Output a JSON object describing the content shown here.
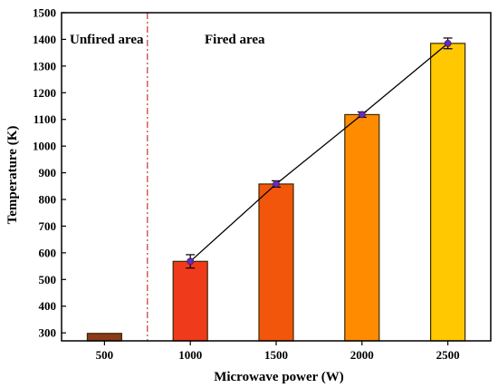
{
  "chart_data": {
    "type": "bar",
    "xlabel": "Microwave power (W)",
    "ylabel": "Temperature (K)",
    "ylim": [
      270,
      1500
    ],
    "yticks": [
      300,
      400,
      500,
      600,
      700,
      800,
      900,
      1000,
      1100,
      1200,
      1300,
      1400,
      1500
    ],
    "categories": [
      "500",
      "1000",
      "1500",
      "2000",
      "2500"
    ],
    "values": [
      298,
      568,
      858,
      1118,
      1385
    ],
    "errors": [
      0,
      25,
      12,
      10,
      20
    ],
    "bar_colors": [
      "#8B3A1A",
      "#F03A1C",
      "#F2560A",
      "#FF8C00",
      "#FFC800"
    ],
    "bar_edge_color": "#3a2a00",
    "line": {
      "x_categories": [
        "1000",
        "1500",
        "2000",
        "2500"
      ],
      "values": [
        568,
        858,
        1118,
        1385
      ],
      "color": "#000000",
      "marker_color": "#6A2BB5",
      "error_color": "#000000"
    },
    "divider": {
      "after_category_index": 0,
      "color": "#C0392B",
      "style": "dash-dot"
    },
    "annotations": {
      "unfired": "Unfired area",
      "fired": "Fired area"
    },
    "grid": false
  }
}
